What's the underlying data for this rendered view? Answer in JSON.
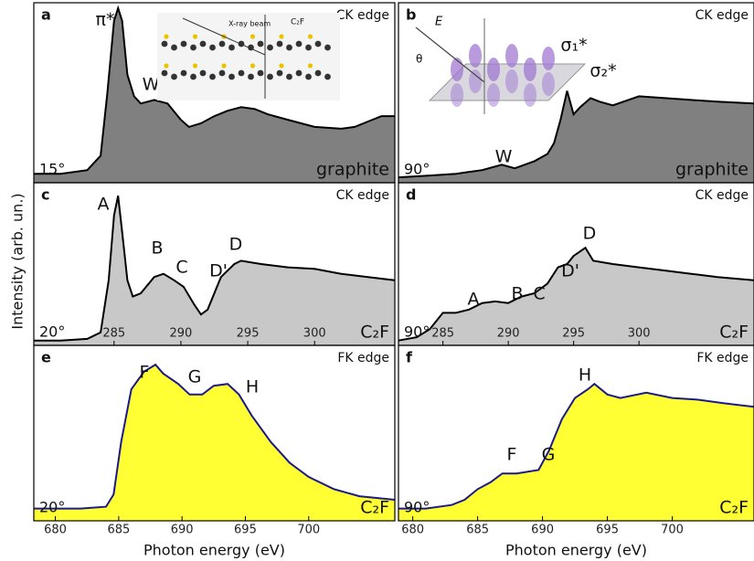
{
  "y_label": "Intensity (arb. un.)",
  "chart_data": [
    {
      "type": "area",
      "panel": "a",
      "edge": "CK edge",
      "angle": "15°",
      "sample": "graphite",
      "annotations": [
        "π*",
        "W"
      ],
      "inset_labels": [
        "X-ray beam",
        "C₂F"
      ],
      "color": "#808080",
      "line_color": "#000000",
      "xlim": [
        279,
        306
      ],
      "ylim": [
        0,
        1
      ],
      "x": [
        279,
        281,
        283,
        284,
        284.5,
        285,
        285.3,
        285.6,
        286,
        286.5,
        287,
        288,
        289,
        290,
        290.6,
        291.5,
        292.5,
        293.5,
        294.5,
        295.5,
        296.5,
        298,
        300,
        302,
        303,
        304,
        305,
        306
      ],
      "values": [
        0.05,
        0.05,
        0.07,
        0.15,
        0.5,
        0.9,
        0.97,
        0.9,
        0.6,
        0.48,
        0.44,
        0.46,
        0.44,
        0.35,
        0.31,
        0.33,
        0.37,
        0.4,
        0.42,
        0.41,
        0.38,
        0.35,
        0.31,
        0.3,
        0.31,
        0.34,
        0.37,
        0.37
      ]
    },
    {
      "type": "area",
      "panel": "b",
      "edge": "CK edge",
      "angle": "90°",
      "sample": "graphite",
      "annotations": [
        "σ₁*",
        "σ₂*",
        "W"
      ],
      "inset_labels": [
        "E",
        "θ"
      ],
      "color": "#808080",
      "line_color": "#000000",
      "xlim": [
        281.6,
        308.8
      ],
      "ylim": [
        0,
        1
      ],
      "x": [
        281.6,
        284,
        286,
        288,
        289.5,
        290.5,
        292,
        293,
        293.5,
        294,
        294.5,
        295,
        295.5,
        296.3,
        297,
        298,
        300,
        302,
        304,
        306,
        308.8
      ],
      "values": [
        0.03,
        0.04,
        0.05,
        0.07,
        0.1,
        0.08,
        0.12,
        0.16,
        0.22,
        0.35,
        0.51,
        0.38,
        0.42,
        0.47,
        0.45,
        0.43,
        0.48,
        0.47,
        0.46,
        0.45,
        0.44
      ]
    },
    {
      "type": "area",
      "panel": "c",
      "edge": "CK edge",
      "angle": "20°",
      "sample": "C₂F",
      "annotations": [
        "A",
        "B",
        "C",
        "D'",
        "D"
      ],
      "color": "#c8c8c8",
      "line_color": "#000000",
      "xlim": [
        279,
        306
      ],
      "ylim": [
        0,
        1
      ],
      "xticks": [
        285,
        290,
        295,
        300
      ],
      "x": [
        279,
        281,
        283,
        284,
        284.6,
        285,
        285.3,
        285.6,
        286,
        286.4,
        287,
        288,
        288.7,
        289.5,
        290.2,
        291,
        291.5,
        292,
        293,
        294,
        294.5,
        296,
        298,
        300,
        302,
        304,
        306
      ],
      "values": [
        0.03,
        0.03,
        0.04,
        0.08,
        0.4,
        0.8,
        0.92,
        0.7,
        0.4,
        0.3,
        0.32,
        0.42,
        0.44,
        0.4,
        0.36,
        0.25,
        0.19,
        0.22,
        0.42,
        0.5,
        0.52,
        0.5,
        0.48,
        0.47,
        0.44,
        0.42,
        0.4
      ]
    },
    {
      "type": "area",
      "panel": "d",
      "edge": "CK edge",
      "angle": "90°",
      "sample": "C₂F",
      "annotations": [
        "A",
        "B",
        "C",
        "D'",
        "D"
      ],
      "color": "#c8c8c8",
      "line_color": "#000000",
      "xlim": [
        281.6,
        308.8
      ],
      "ylim": [
        0,
        1
      ],
      "xticks": [
        285,
        290,
        295,
        300
      ],
      "x": [
        281.6,
        283,
        284,
        285,
        286,
        287,
        288,
        289,
        290,
        291,
        292,
        293,
        293.8,
        294.5,
        295,
        295.9,
        296.5,
        298,
        300,
        302,
        304,
        306,
        308.8
      ],
      "values": [
        0.03,
        0.05,
        0.1,
        0.2,
        0.2,
        0.22,
        0.26,
        0.27,
        0.26,
        0.3,
        0.32,
        0.38,
        0.48,
        0.5,
        0.55,
        0.6,
        0.52,
        0.5,
        0.48,
        0.46,
        0.44,
        0.42,
        0.4
      ]
    },
    {
      "type": "area",
      "panel": "e",
      "edge": "FK edge",
      "angle": "20°",
      "sample": "C₂F",
      "annotations": [
        "F",
        "G",
        "H"
      ],
      "xlabel": "Photon energy (eV)",
      "color": "#ffff33",
      "line_color": "#1a1a8c",
      "xlim": [
        678.3,
        706.8
      ],
      "ylim": [
        0,
        1
      ],
      "xticks": [
        680,
        685,
        690,
        695,
        700
      ],
      "x": [
        678.3,
        680,
        682,
        684,
        684.6,
        685.2,
        686,
        687,
        687.9,
        688.5,
        689.7,
        690.6,
        691.6,
        692.5,
        693.6,
        694.5,
        695.5,
        697,
        698.5,
        700,
        702,
        704,
        706.8
      ],
      "values": [
        0.07,
        0.07,
        0.07,
        0.08,
        0.15,
        0.45,
        0.75,
        0.85,
        0.89,
        0.84,
        0.78,
        0.72,
        0.72,
        0.77,
        0.78,
        0.72,
        0.6,
        0.45,
        0.33,
        0.25,
        0.18,
        0.14,
        0.12
      ]
    },
    {
      "type": "area",
      "panel": "f",
      "edge": "FK edge",
      "angle": "90°",
      "sample": "C₂F",
      "annotations": [
        "F",
        "G",
        "H"
      ],
      "xlabel": "Photon energy (eV)",
      "color": "#ffff33",
      "line_color": "#1a1a8c",
      "xlim": [
        678.9,
        706.3
      ],
      "ylim": [
        0,
        1
      ],
      "xticks": [
        680,
        685,
        690,
        695,
        700
      ],
      "x": [
        678.9,
        681,
        683,
        684,
        685,
        686,
        686.9,
        688,
        689.7,
        690.5,
        691.5,
        692.5,
        693.5,
        694,
        695,
        696,
        698,
        700,
        702,
        704,
        706.3
      ],
      "values": [
        0.07,
        0.07,
        0.09,
        0.12,
        0.18,
        0.22,
        0.27,
        0.27,
        0.29,
        0.4,
        0.58,
        0.7,
        0.75,
        0.78,
        0.72,
        0.7,
        0.73,
        0.7,
        0.69,
        0.67,
        0.65
      ]
    }
  ]
}
